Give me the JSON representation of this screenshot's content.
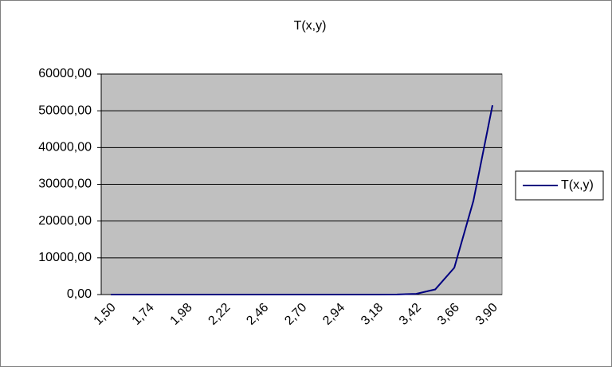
{
  "chart_data": {
    "type": "line",
    "title": "T(x,y)",
    "categories": [
      "1,50",
      null,
      "1,74",
      null,
      "1,98",
      null,
      "2,22",
      null,
      "2,46",
      null,
      "2,70",
      null,
      "2,94",
      null,
      "3,18",
      null,
      "3,42",
      null,
      "3,66",
      null,
      "3,90"
    ],
    "series": [
      {
        "name": "T(x,y)",
        "color": "#000080",
        "values": [
          0,
          0,
          0,
          0,
          0,
          0,
          0,
          0,
          0,
          0,
          0,
          0,
          0,
          0,
          5,
          30,
          200,
          1400,
          7300,
          25500,
          51500
        ]
      }
    ],
    "ylim": [
      0,
      60000
    ],
    "yticks": [
      {
        "value": 0,
        "label": "0,00"
      },
      {
        "value": 10000,
        "label": "10000,00"
      },
      {
        "value": 20000,
        "label": "20000,00"
      },
      {
        "value": 30000,
        "label": "30000,00"
      },
      {
        "value": 40000,
        "label": "40000,00"
      },
      {
        "value": 50000,
        "label": "50000,00"
      },
      {
        "value": 60000,
        "label": "60000,00"
      }
    ],
    "grid": true,
    "legend": "right",
    "plot_background": "#c0c0c0"
  }
}
